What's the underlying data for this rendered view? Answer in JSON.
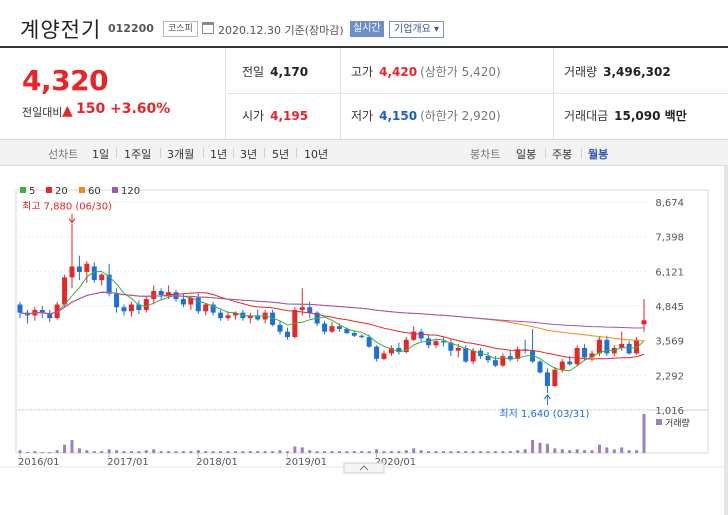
{
  "header": {
    "name": "계양전기",
    "code": "012200",
    "market": "코스피",
    "date": "2020.12.30 기준(장마감)",
    "realtime_label": "실시간",
    "overview_label": "기업개요 ▾"
  },
  "price": {
    "current": "4,320",
    "change_label": "전일대비",
    "change_arrow": "▲",
    "change": "150",
    "change_pct": "+3.60%"
  },
  "stats": {
    "prev_close_label": "전일",
    "prev_close": "4,170",
    "high_label": "고가",
    "high": "4,420",
    "upper_limit": "(상한가 5,420)",
    "volume_label": "거래량",
    "volume": "3,496,302",
    "open_label": "시가",
    "open": "4,195",
    "low_label": "저가",
    "low": "4,150",
    "lower_limit": "(하한가 2,920)",
    "amount_label": "거래대금",
    "amount": "15,090 백만"
  },
  "toolbar": {
    "line_chart_label": "선차트",
    "periods": [
      "1일",
      "1주일",
      "3개월",
      "1년",
      "3년",
      "5년",
      "10년"
    ],
    "candle_chart_label": "봉차트",
    "candle_periods": [
      "일봉",
      "주봉",
      "월봉"
    ],
    "active_candle": "월봉"
  },
  "chart_data": {
    "type": "candlestick",
    "interval": "monthly",
    "legend": [
      {
        "name": "5",
        "color": "#3cb043"
      },
      {
        "name": "20",
        "color": "#e8262a"
      },
      {
        "name": "60",
        "color": "#f08a16"
      },
      {
        "name": "120",
        "color": "#9b59b6"
      }
    ],
    "y_ticks": [
      "8,674",
      "7,398",
      "6,121",
      "4,845",
      "3,569",
      "2,292",
      "1,016"
    ],
    "ylim": [
      1016,
      8674
    ],
    "x_ticks": [
      "2016/01",
      "2017/01",
      "2018/01",
      "2019/01",
      "2020/01"
    ],
    "high_annotation": "최고 7,880 (06/30)",
    "low_annotation": "최저 1,640 (03/31)",
    "volume_label": "거래량",
    "candles": [
      [
        4900,
        5000,
        4400,
        4600
      ],
      [
        4600,
        4700,
        4200,
        4500
      ],
      [
        4500,
        4800,
        4300,
        4700
      ],
      [
        4700,
        4850,
        4400,
        4600
      ],
      [
        4550,
        4700,
        4250,
        4400
      ],
      [
        4400,
        5000,
        4350,
        4900
      ],
      [
        4900,
        6000,
        4800,
        5900
      ],
      [
        5900,
        7880,
        5500,
        6300
      ],
      [
        6300,
        6700,
        5800,
        6100
      ],
      [
        6100,
        6500,
        5700,
        6400
      ],
      [
        6300,
        6450,
        5700,
        5800
      ],
      [
        5800,
        6050,
        5600,
        6000
      ],
      [
        6000,
        6400,
        5200,
        5300
      ],
      [
        5300,
        5500,
        4600,
        4800
      ],
      [
        4800,
        4900,
        4500,
        4650
      ],
      [
        4650,
        5000,
        4450,
        4900
      ],
      [
        4900,
        5050,
        4550,
        4700
      ],
      [
        4700,
        5200,
        4600,
        5100
      ],
      [
        5100,
        5600,
        4900,
        5400
      ],
      [
        5400,
        5500,
        5100,
        5250
      ],
      [
        5250,
        5600,
        5100,
        5350
      ],
      [
        5350,
        5450,
        5000,
        5100
      ],
      [
        5100,
        5300,
        4800,
        4900
      ],
      [
        4900,
        5200,
        4700,
        5150
      ],
      [
        5150,
        5300,
        4550,
        4650
      ],
      [
        4650,
        4950,
        4500,
        4900
      ],
      [
        4900,
        5000,
        4500,
        4600
      ],
      [
        4600,
        4700,
        4300,
        4400
      ],
      [
        4400,
        4650,
        4300,
        4500
      ],
      [
        4500,
        4650,
        4350,
        4600
      ],
      [
        4600,
        4700,
        4300,
        4400
      ],
      [
        4400,
        4600,
        4200,
        4500
      ],
      [
        4500,
        4700,
        4300,
        4350
      ],
      [
        4350,
        4700,
        4200,
        4600
      ],
      [
        4600,
        4700,
        4100,
        4150
      ],
      [
        4150,
        4300,
        3800,
        3900
      ],
      [
        3900,
        4050,
        3600,
        3700
      ],
      [
        3700,
        4800,
        3650,
        4700
      ],
      [
        4700,
        5500,
        4500,
        4800
      ],
      [
        4800,
        5000,
        4400,
        4600
      ],
      [
        4600,
        4650,
        4100,
        4200
      ],
      [
        4200,
        4300,
        3800,
        3900
      ],
      [
        3900,
        4250,
        3850,
        4100
      ],
      [
        4100,
        4200,
        3900,
        4000
      ],
      [
        4000,
        4050,
        3800,
        3850
      ],
      [
        3850,
        3950,
        3700,
        3750
      ],
      [
        3750,
        3800,
        3650,
        3700
      ],
      [
        3700,
        3800,
        3300,
        3350
      ],
      [
        3350,
        3400,
        2800,
        2900
      ],
      [
        2900,
        3200,
        2850,
        3100
      ],
      [
        3100,
        3400,
        3000,
        3300
      ],
      [
        3300,
        3500,
        3050,
        3150
      ],
      [
        3150,
        3700,
        3100,
        3600
      ],
      [
        3600,
        4100,
        3550,
        3900
      ],
      [
        3900,
        4000,
        3550,
        3650
      ],
      [
        3650,
        3800,
        3300,
        3400
      ],
      [
        3400,
        3650,
        3300,
        3550
      ],
      [
        3550,
        3700,
        3350,
        3500
      ],
      [
        3500,
        3600,
        3000,
        3200
      ],
      [
        3200,
        3450,
        2950,
        3300
      ],
      [
        3300,
        3400,
        2750,
        2800
      ],
      [
        2800,
        3300,
        2700,
        3200
      ],
      [
        3200,
        3300,
        2900,
        3000
      ],
      [
        3000,
        3150,
        2750,
        2850
      ],
      [
        2850,
        3000,
        2600,
        2650
      ],
      [
        2650,
        3100,
        2600,
        3000
      ],
      [
        3000,
        3200,
        2800,
        2900
      ],
      [
        2900,
        3350,
        2800,
        3250
      ],
      [
        3250,
        3600,
        3100,
        3200
      ],
      [
        3200,
        4000,
        2750,
        2800
      ],
      [
        2800,
        2850,
        2350,
        2400
      ],
      [
        2400,
        2550,
        1640,
        1900
      ],
      [
        1900,
        2600,
        1850,
        2500
      ],
      [
        2500,
        2900,
        2400,
        2800
      ],
      [
        2800,
        3000,
        2650,
        2700
      ],
      [
        2700,
        3400,
        2650,
        3300
      ],
      [
        3300,
        3450,
        2850,
        2950
      ],
      [
        2950,
        3200,
        2800,
        3100
      ],
      [
        3100,
        3700,
        3000,
        3600
      ],
      [
        3600,
        3750,
        3000,
        3100
      ],
      [
        3100,
        3400,
        3000,
        3300
      ],
      [
        3300,
        3900,
        3200,
        3450
      ],
      [
        3450,
        3550,
        3050,
        3100
      ],
      [
        3100,
        3700,
        3050,
        3600
      ],
      [
        4170,
        5100,
        3900,
        4320
      ]
    ],
    "volume": [
      3,
      1,
      2,
      1,
      1,
      3,
      9,
      14,
      5,
      3,
      2,
      2,
      4,
      3,
      2,
      2,
      2,
      3,
      4,
      2,
      2,
      2,
      2,
      2,
      3,
      2,
      2,
      2,
      2,
      2,
      2,
      2,
      2,
      2,
      2,
      3,
      2,
      7,
      6,
      3,
      2,
      2,
      2,
      2,
      2,
      2,
      2,
      2,
      4,
      2,
      2,
      2,
      3,
      5,
      3,
      2,
      2,
      2,
      2,
      2,
      2,
      2,
      2,
      2,
      2,
      2,
      2,
      3,
      4,
      14,
      11,
      10,
      5,
      4,
      3,
      4,
      3,
      3,
      9,
      6,
      4,
      6,
      3,
      3,
      42
    ]
  }
}
